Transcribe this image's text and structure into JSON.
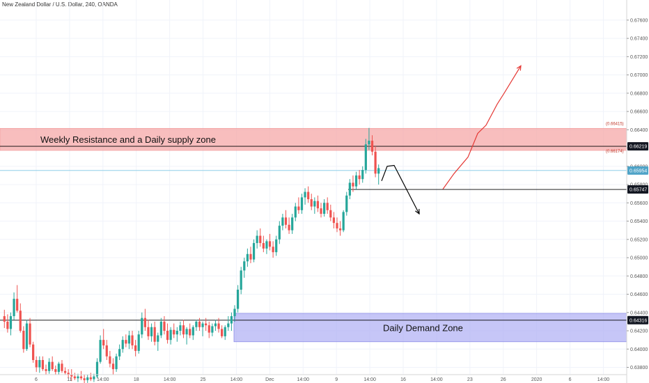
{
  "header": {
    "title": "New Zealand Dollar / U.S. Dollar, 240, OANDA"
  },
  "chart_data": {
    "type": "candlestick",
    "symbol": "NZDUSD",
    "timeframe": "240",
    "broker": "OANDA",
    "y_ticks": [
      "0.67600",
      "0.67400",
      "0.67200",
      "0.67000",
      "0.66800",
      "0.66600",
      "0.66400",
      "0.66200",
      "0.66000",
      "0.65800",
      "0.65600",
      "0.65400",
      "0.65200",
      "0.65000",
      "0.64800",
      "0.64600",
      "0.64400",
      "0.64200",
      "0.64000",
      "0.63800"
    ],
    "x_ticks": [
      "6",
      "11",
      "14:00",
      "18",
      "14:00",
      "25",
      "14:00",
      "Dec",
      "14:00",
      "9",
      "14:00",
      "16",
      "14:00",
      "23",
      "26",
      "2020",
      "6",
      "14:00"
    ],
    "ylim": [
      0.6372,
      0.6782
    ],
    "zones": [
      {
        "label": "Weekly Resistance and a Daily supply zone",
        "top": 0.66415,
        "bottom": 0.66174,
        "color": "#f6a9a9"
      },
      {
        "label": "Daily Demand Zone",
        "top": 0.6439,
        "bottom": 0.6408,
        "color": "#b3b3f5"
      }
    ],
    "zone_tags": [
      "0.66415",
      "0.66174"
    ],
    "price_badges": [
      {
        "value": "0.66219",
        "color": "#131722"
      },
      {
        "value": "0.65954",
        "color": "#4fa3c7"
      },
      {
        "value": "0.65747",
        "color": "#131722"
      },
      {
        "value": "0.64316",
        "color": "#131722"
      }
    ],
    "levels": [
      {
        "value": 0.66219,
        "color": "#000000"
      },
      {
        "value": 0.65954,
        "color": "#7ec8e3"
      },
      {
        "value": 0.65747,
        "color": "#000000"
      },
      {
        "value": 0.64316,
        "color": "#000000"
      }
    ],
    "candle_colors": {
      "up": "#26a69a",
      "down": "#ef5350"
    },
    "ohlc": [
      [
        0.6436,
        0.6443,
        0.6423,
        0.643
      ],
      [
        0.643,
        0.6438,
        0.6418,
        0.6422
      ],
      [
        0.6422,
        0.644,
        0.6415,
        0.6436
      ],
      [
        0.6436,
        0.6462,
        0.6432,
        0.6455
      ],
      [
        0.6455,
        0.647,
        0.644,
        0.6442
      ],
      [
        0.6442,
        0.645,
        0.6418,
        0.642
      ],
      [
        0.642,
        0.6425,
        0.6396,
        0.64
      ],
      [
        0.64,
        0.6432,
        0.6398,
        0.6428
      ],
      [
        0.6428,
        0.6434,
        0.6402,
        0.6405
      ],
      [
        0.6405,
        0.6408,
        0.6385,
        0.6388
      ],
      [
        0.6388,
        0.6392,
        0.6375,
        0.638
      ],
      [
        0.638,
        0.6392,
        0.6374,
        0.6388
      ],
      [
        0.6388,
        0.6392,
        0.6376,
        0.6378
      ],
      [
        0.6378,
        0.6383,
        0.6372,
        0.6376
      ],
      [
        0.6376,
        0.639,
        0.6373,
        0.6386
      ],
      [
        0.6386,
        0.6392,
        0.6376,
        0.6378
      ],
      [
        0.6378,
        0.6382,
        0.6372,
        0.6375
      ],
      [
        0.6375,
        0.6386,
        0.6372,
        0.6384
      ],
      [
        0.6384,
        0.6388,
        0.6374,
        0.6376
      ],
      [
        0.6376,
        0.638,
        0.6372,
        0.6374
      ],
      [
        0.6374,
        0.6378,
        0.6368,
        0.6372
      ],
      [
        0.6372,
        0.6378,
        0.6365,
        0.637
      ],
      [
        0.637,
        0.6374,
        0.6366,
        0.6368
      ],
      [
        0.6368,
        0.6373,
        0.6364,
        0.637
      ],
      [
        0.637,
        0.6376,
        0.6366,
        0.6368
      ],
      [
        0.6368,
        0.6372,
        0.6362,
        0.6366
      ],
      [
        0.6366,
        0.6372,
        0.6363,
        0.6369
      ],
      [
        0.6369,
        0.6374,
        0.6365,
        0.6367
      ],
      [
        0.6367,
        0.6373,
        0.6364,
        0.637
      ],
      [
        0.637,
        0.639,
        0.6368,
        0.6386
      ],
      [
        0.6386,
        0.6415,
        0.6384,
        0.641
      ],
      [
        0.641,
        0.6422,
        0.64,
        0.6404
      ],
      [
        0.6404,
        0.641,
        0.6388,
        0.6392
      ],
      [
        0.6392,
        0.6398,
        0.638,
        0.6384
      ],
      [
        0.6384,
        0.639,
        0.6372,
        0.6378
      ],
      [
        0.6378,
        0.6395,
        0.6375,
        0.6392
      ],
      [
        0.6392,
        0.6405,
        0.6388,
        0.64
      ],
      [
        0.64,
        0.6414,
        0.6396,
        0.641
      ],
      [
        0.641,
        0.6416,
        0.6402,
        0.6406
      ],
      [
        0.6406,
        0.642,
        0.64,
        0.6415
      ],
      [
        0.6415,
        0.642,
        0.64,
        0.6404
      ],
      [
        0.6404,
        0.641,
        0.6392,
        0.6398
      ],
      [
        0.6398,
        0.642,
        0.6395,
        0.6416
      ],
      [
        0.6416,
        0.644,
        0.6412,
        0.6434
      ],
      [
        0.6434,
        0.6444,
        0.642,
        0.6424
      ],
      [
        0.6424,
        0.6432,
        0.641,
        0.6414
      ],
      [
        0.6414,
        0.6428,
        0.6408,
        0.6424
      ],
      [
        0.6424,
        0.643,
        0.6404,
        0.6408
      ],
      [
        0.6408,
        0.6418,
        0.6398,
        0.6415
      ],
      [
        0.6415,
        0.6434,
        0.6412,
        0.643
      ],
      [
        0.643,
        0.6436,
        0.6416,
        0.642
      ],
      [
        0.642,
        0.6428,
        0.6406,
        0.641
      ],
      [
        0.641,
        0.6424,
        0.6405,
        0.6421
      ],
      [
        0.6421,
        0.6428,
        0.6412,
        0.6416
      ],
      [
        0.6416,
        0.6424,
        0.6408,
        0.642
      ],
      [
        0.642,
        0.643,
        0.6415,
        0.6426
      ],
      [
        0.6426,
        0.6432,
        0.6412,
        0.6416
      ],
      [
        0.6416,
        0.6424,
        0.6405,
        0.6422
      ],
      [
        0.6422,
        0.6428,
        0.6412,
        0.6415
      ],
      [
        0.6415,
        0.6426,
        0.641,
        0.6424
      ],
      [
        0.6424,
        0.6432,
        0.642,
        0.643
      ],
      [
        0.643,
        0.6434,
        0.642,
        0.6424
      ],
      [
        0.6424,
        0.643,
        0.6414,
        0.6428
      ],
      [
        0.6428,
        0.6434,
        0.642,
        0.6426
      ],
      [
        0.6426,
        0.643,
        0.6412,
        0.6418
      ],
      [
        0.6418,
        0.6428,
        0.6414,
        0.6425
      ],
      [
        0.6425,
        0.6432,
        0.642,
        0.6428
      ],
      [
        0.6428,
        0.6434,
        0.6418,
        0.6422
      ],
      [
        0.6422,
        0.6426,
        0.6412,
        0.6414
      ],
      [
        0.6414,
        0.6426,
        0.641,
        0.6424
      ],
      [
        0.6424,
        0.6436,
        0.642,
        0.6428
      ],
      [
        0.6428,
        0.644,
        0.642,
        0.6436
      ],
      [
        0.6436,
        0.6448,
        0.643,
        0.6444
      ],
      [
        0.6444,
        0.647,
        0.644,
        0.6465
      ],
      [
        0.6465,
        0.649,
        0.646,
        0.6486
      ],
      [
        0.6486,
        0.65,
        0.6478,
        0.6496
      ],
      [
        0.6496,
        0.651,
        0.649,
        0.6504
      ],
      [
        0.6504,
        0.6512,
        0.6494,
        0.6498
      ],
      [
        0.6498,
        0.652,
        0.6495,
        0.6516
      ],
      [
        0.6516,
        0.653,
        0.651,
        0.6524
      ],
      [
        0.6524,
        0.6532,
        0.6512,
        0.6516
      ],
      [
        0.6516,
        0.6524,
        0.6506,
        0.651
      ],
      [
        0.651,
        0.652,
        0.6504,
        0.6518
      ],
      [
        0.6518,
        0.6526,
        0.6508,
        0.6512
      ],
      [
        0.6512,
        0.6518,
        0.65,
        0.6506
      ],
      [
        0.6506,
        0.6524,
        0.6502,
        0.652
      ],
      [
        0.652,
        0.654,
        0.6515,
        0.6535
      ],
      [
        0.6535,
        0.6548,
        0.653,
        0.6544
      ],
      [
        0.6544,
        0.6552,
        0.6532,
        0.6536
      ],
      [
        0.6536,
        0.6544,
        0.6526,
        0.653
      ],
      [
        0.653,
        0.6548,
        0.6526,
        0.6544
      ],
      [
        0.6544,
        0.656,
        0.654,
        0.6556
      ],
      [
        0.6556,
        0.6566,
        0.6548,
        0.6552
      ],
      [
        0.6552,
        0.657,
        0.6548,
        0.6566
      ],
      [
        0.6566,
        0.6576,
        0.6558,
        0.6572
      ],
      [
        0.6572,
        0.6578,
        0.656,
        0.6564
      ],
      [
        0.6564,
        0.657,
        0.6552,
        0.6556
      ],
      [
        0.6556,
        0.6566,
        0.6548,
        0.6562
      ],
      [
        0.6562,
        0.6568,
        0.655,
        0.6554
      ],
      [
        0.6554,
        0.656,
        0.6544,
        0.6548
      ],
      [
        0.6548,
        0.6564,
        0.6545,
        0.656
      ],
      [
        0.656,
        0.6566,
        0.6548,
        0.6552
      ],
      [
        0.6552,
        0.6558,
        0.654,
        0.6544
      ],
      [
        0.6544,
        0.655,
        0.6532,
        0.6538
      ],
      [
        0.6538,
        0.6544,
        0.6528,
        0.6532
      ],
      [
        0.6532,
        0.654,
        0.6524,
        0.653
      ],
      [
        0.653,
        0.6552,
        0.6528,
        0.655
      ],
      [
        0.655,
        0.6572,
        0.6546,
        0.6568
      ],
      [
        0.6568,
        0.6586,
        0.6564,
        0.6582
      ],
      [
        0.6582,
        0.659,
        0.6572,
        0.6578
      ],
      [
        0.6578,
        0.6594,
        0.6574,
        0.659
      ],
      [
        0.659,
        0.6596,
        0.658,
        0.6586
      ],
      [
        0.6586,
        0.66,
        0.6582,
        0.6596
      ],
      [
        0.6596,
        0.663,
        0.6592,
        0.6624
      ],
      [
        0.6624,
        0.6642,
        0.6618,
        0.6628
      ],
      [
        0.6628,
        0.6634,
        0.6612,
        0.6616
      ],
      [
        0.6616,
        0.6622,
        0.6588,
        0.6592
      ],
      [
        0.6592,
        0.6602,
        0.658,
        0.6598
      ]
    ],
    "projections": [
      {
        "color": "#000000",
        "path": [
          [
            0.6584,
            0.659
          ],
          [
            0.6592,
            0.66
          ],
          [
            0.6601,
            0.6616
          ],
          [
            0.6622,
            0.6548
          ]
        ]
      },
      {
        "color": "#e53935",
        "path": [
          [
            0.6575,
            0.6585
          ],
          [
            0.659,
            0.6592
          ],
          [
            0.661,
            0.663
          ],
          [
            0.663,
            0.6636
          ],
          [
            0.6645,
            0.6658
          ],
          [
            0.666,
            0.6668
          ],
          [
            0.668,
            0.6692
          ],
          [
            0.67,
            0.671
          ]
        ]
      }
    ]
  }
}
